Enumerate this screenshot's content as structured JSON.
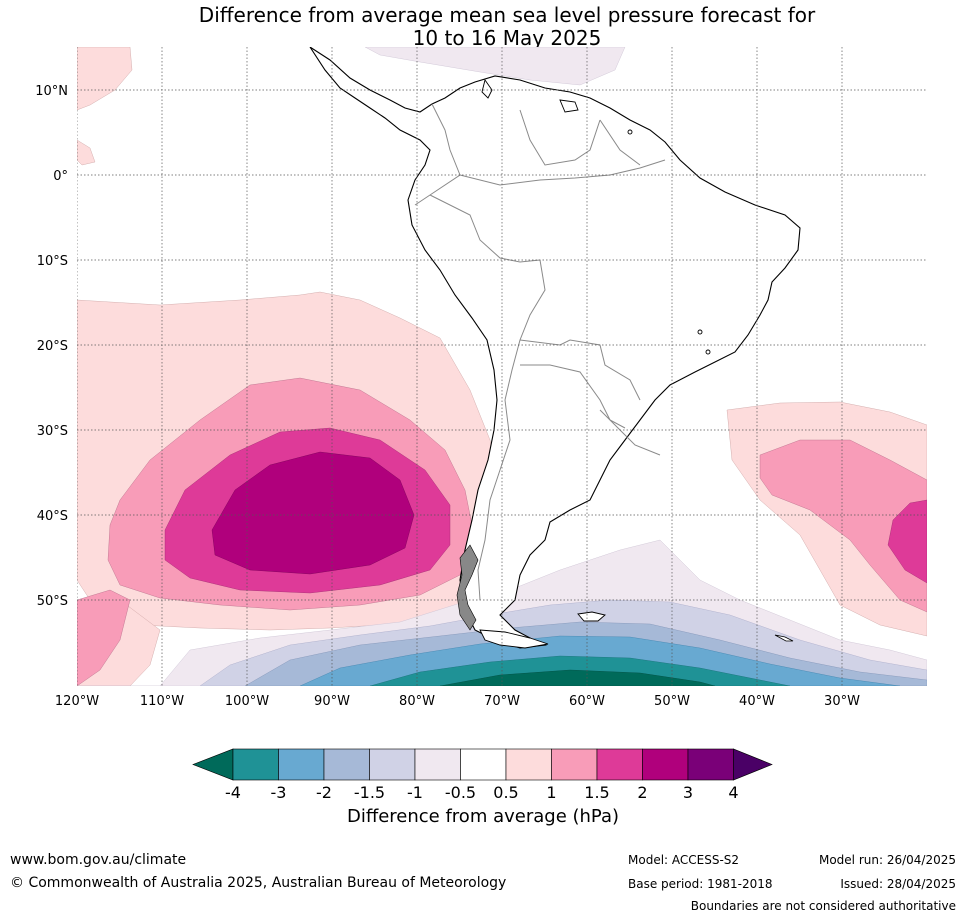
{
  "title_line1": "Difference from average mean sea level pressure forecast for",
  "title_line2": "10 to 16 May 2025",
  "lat_labels": [
    "10°N",
    "0°",
    "10°S",
    "20°S",
    "30°S",
    "40°S",
    "50°S"
  ],
  "lon_labels": [
    "120°W",
    "110°W",
    "100°W",
    "90°W",
    "80°W",
    "70°W",
    "60°W",
    "50°W",
    "40°W",
    "30°W"
  ],
  "colorbar": {
    "label": "Difference from average (hPa)",
    "ticks": [
      "-4",
      "-3",
      "-2",
      "-1.5",
      "-1",
      "-0.5",
      "0.5",
      "1",
      "1.5",
      "2",
      "3",
      "4"
    ],
    "colors": [
      "#006a5a",
      "#1f9296",
      "#68a9d1",
      "#a6b9d7",
      "#d0d2e6",
      "#f0e8f0",
      "#ffffff",
      "#fddcdc",
      "#f89cb8",
      "#de3a98",
      "#b0007c",
      "#7a0078",
      "#4a0066"
    ]
  },
  "footer": {
    "website": "www.bom.gov.au/climate",
    "copyright": "© Commonwealth of Australia 2025, Australian Bureau of Meteorology",
    "model": "Model: ACCESS-S2",
    "base_period": "Base period: 1981-2018",
    "model_run": "Model run: 26/04/2025",
    "issued": "Issued: 28/04/2025",
    "disclaimer": "Boundaries are not considered authoritative"
  }
}
